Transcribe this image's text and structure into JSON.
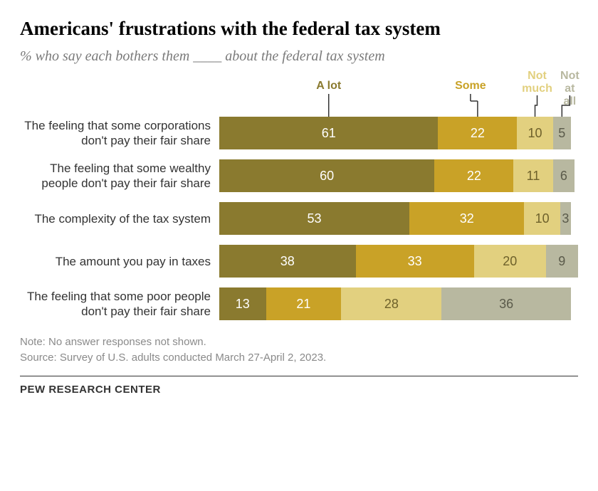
{
  "title": "Americans' frustrations with the federal tax system",
  "title_fontsize": 27,
  "subtitle": "% who say each bothers them ____ about the federal tax system",
  "subtitle_fontsize": 20,
  "label_fontsize": 17,
  "value_fontsize": 18,
  "legend_fontsize": 16,
  "footnote_fontsize": 15,
  "brand_fontsize": 15,
  "background_color": "#ffffff",
  "categories": [
    {
      "key": "alot",
      "label": "A lot",
      "color": "#8a7a2f",
      "text_color": "#ffffff"
    },
    {
      "key": "some",
      "label": "Some",
      "color": "#c9a227",
      "text_color": "#ffffff"
    },
    {
      "key": "notmuch",
      "label": "Not\nmuch",
      "color": "#e2d07f",
      "text_color": "#6e612b"
    },
    {
      "key": "notatall",
      "label": "Not\nat all",
      "color": "#b8b8a0",
      "text_color": "#5a5a4a"
    }
  ],
  "bar_total_scale": 100,
  "rows": [
    {
      "label": "The feeling that some corporations don't pay their fair share",
      "values": [
        61,
        22,
        10,
        5
      ]
    },
    {
      "label": "The feeling that some wealthy people don't pay their fair share",
      "values": [
        60,
        22,
        11,
        6
      ]
    },
    {
      "label": "The complexity of the tax system",
      "values": [
        53,
        32,
        10,
        3
      ]
    },
    {
      "label": "The amount you pay in taxes",
      "values": [
        38,
        33,
        20,
        9
      ]
    },
    {
      "label": "The feeling that some poor people don't pay their fair share",
      "values": [
        13,
        21,
        28,
        36
      ]
    }
  ],
  "note_line1": "Note: No answer responses not shown.",
  "note_line2": "Source: Survey of U.S. adults conducted March 27-April 2, 2023.",
  "brand": "PEW RESEARCH CENTER"
}
